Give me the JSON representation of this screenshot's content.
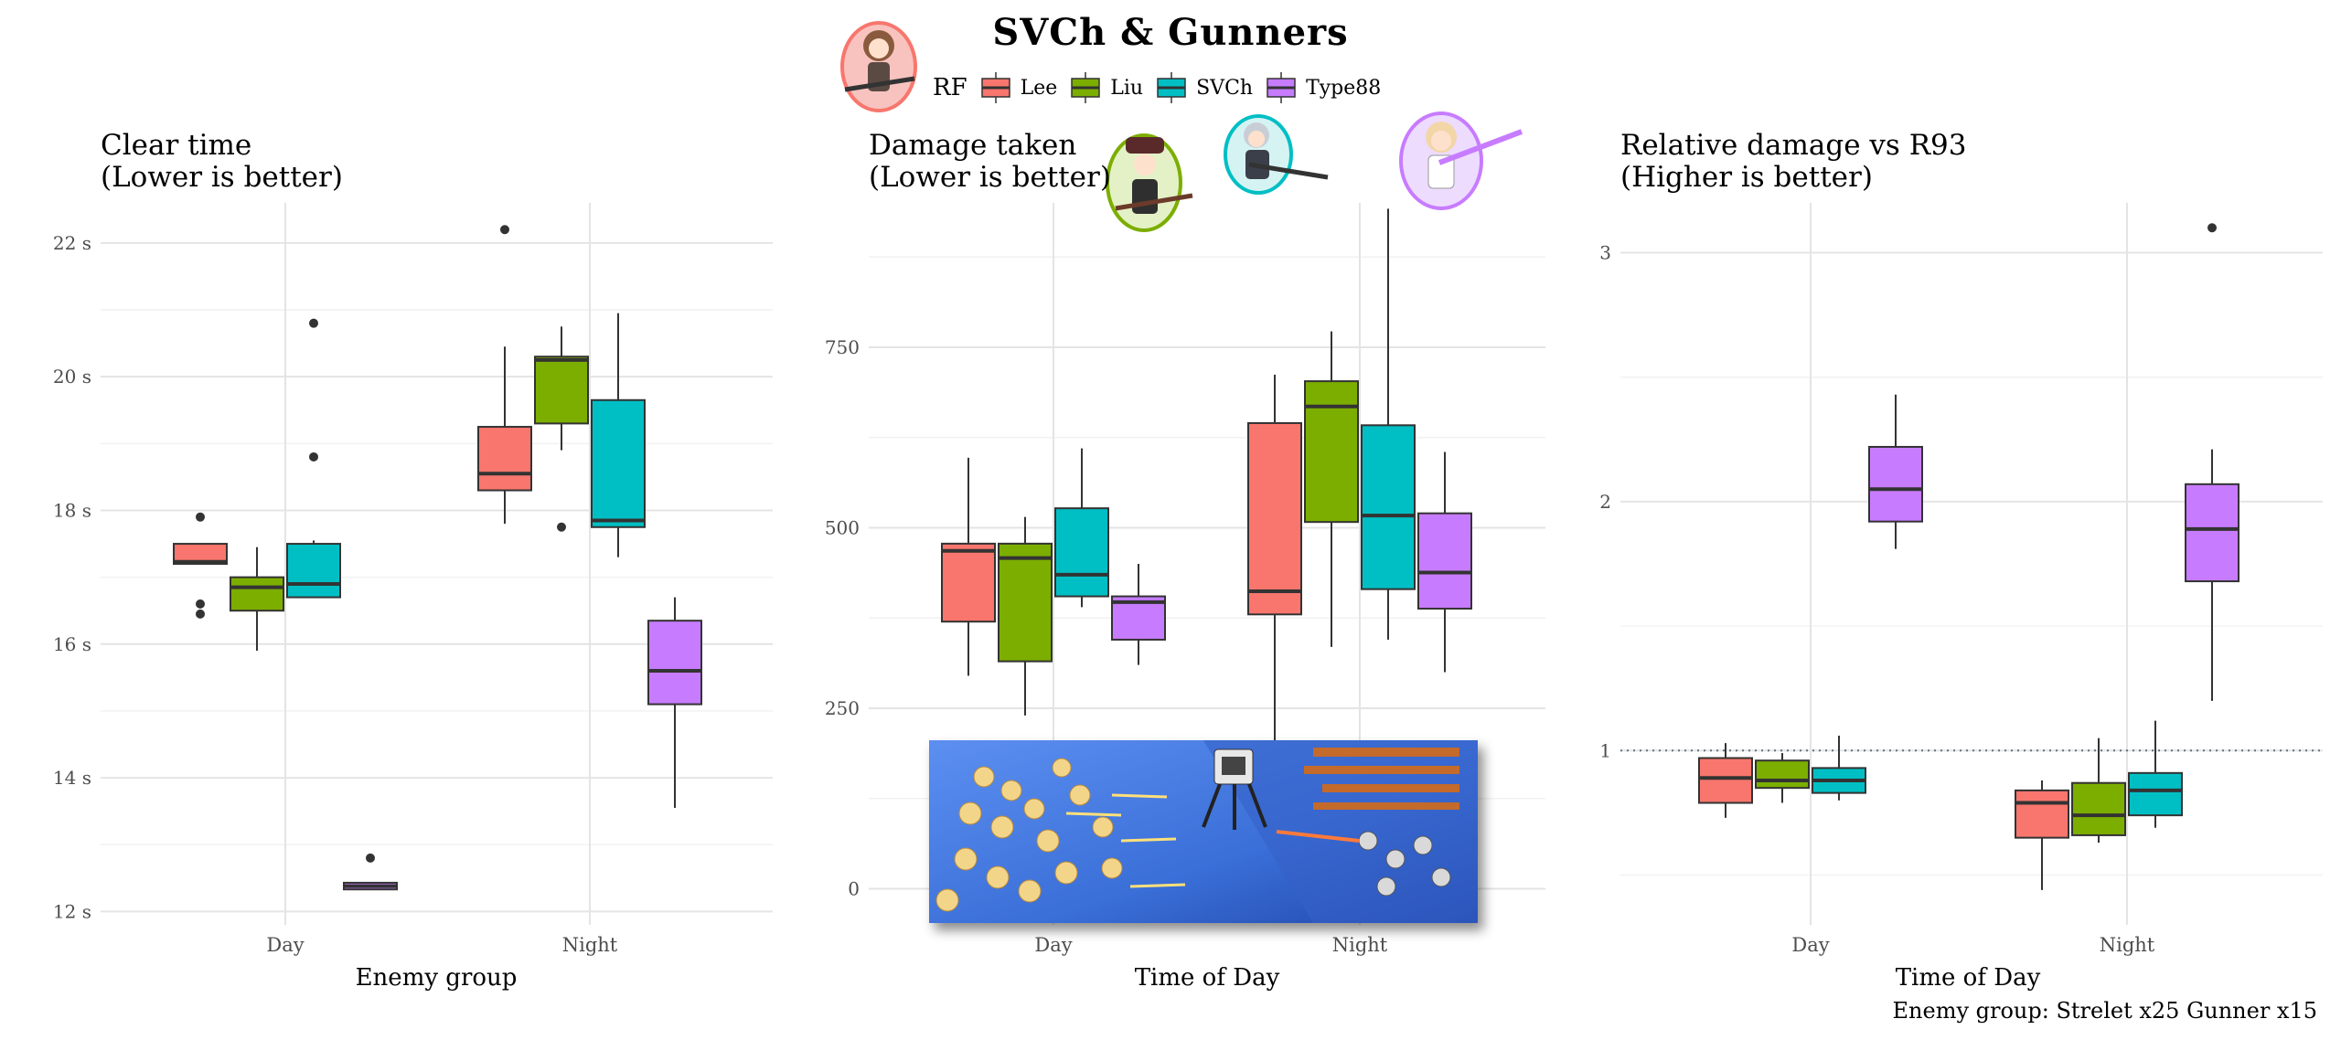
{
  "title": "SVCh & Gunners",
  "legend": {
    "title": "RF",
    "entries": [
      {
        "name": "Lee",
        "color": "#F8766D"
      },
      {
        "name": "Liu",
        "color": "#7CAE00"
      },
      {
        "name": "SVCh",
        "color": "#00BFC4"
      },
      {
        "name": "Type88",
        "color": "#C77CFF"
      }
    ]
  },
  "caption": "Enemy group: Strelet x25 Gunner x15",
  "chart_data": [
    {
      "type": "boxplot",
      "title": "Clear time\n(Lower is better)",
      "xlabel": "Enemy group",
      "ylabel": "",
      "categories": [
        "Day",
        "Night"
      ],
      "ylim": [
        11.8,
        22.6
      ],
      "yticks": [
        12,
        14,
        16,
        18,
        20,
        22
      ],
      "ytick_labels": [
        "12 s",
        "14 s",
        "16 s",
        "18 s",
        "20 s",
        "22 s"
      ],
      "series": [
        {
          "name": "Lee",
          "boxes": [
            {
              "q1": 17.2,
              "median": 17.23,
              "q3": 17.5,
              "lo": 17.2,
              "hi": 17.5,
              "outliers": [
                17.9,
                16.6,
                16.45
              ]
            },
            {
              "q1": 18.3,
              "median": 18.55,
              "q3": 19.25,
              "lo": 17.8,
              "hi": 20.45,
              "outliers": [
                22.2
              ]
            }
          ]
        },
        {
          "name": "Liu",
          "boxes": [
            {
              "q1": 16.5,
              "median": 16.85,
              "q3": 17.0,
              "lo": 15.9,
              "hi": 17.45,
              "outliers": []
            },
            {
              "q1": 19.3,
              "median": 20.25,
              "q3": 20.3,
              "lo": 18.9,
              "hi": 20.75,
              "outliers": [
                17.75
              ]
            }
          ]
        },
        {
          "name": "SVCh",
          "boxes": [
            {
              "q1": 16.7,
              "median": 16.9,
              "q3": 17.5,
              "lo": 16.7,
              "hi": 17.55,
              "outliers": [
                20.8,
                18.8
              ]
            },
            {
              "q1": 17.75,
              "median": 17.85,
              "q3": 19.65,
              "lo": 17.3,
              "hi": 20.95,
              "outliers": []
            }
          ]
        },
        {
          "name": "Type88",
          "boxes": [
            {
              "q1": 12.33,
              "median": 12.38,
              "q3": 12.43,
              "lo": 12.33,
              "hi": 12.43,
              "outliers": [
                12.8
              ]
            },
            {
              "q1": 15.1,
              "median": 15.6,
              "q3": 16.35,
              "lo": 13.55,
              "hi": 16.7,
              "outliers": []
            }
          ]
        }
      ]
    },
    {
      "type": "boxplot",
      "title": "Damage taken\n(Lower is better)",
      "xlabel": "Time of Day",
      "ylabel": "",
      "categories": [
        "Day",
        "Night"
      ],
      "ylim": [
        -50,
        950
      ],
      "yticks": [
        0,
        250,
        500,
        750
      ],
      "ytick_labels": [
        "0",
        "250",
        "500",
        "750"
      ],
      "series": [
        {
          "name": "Lee",
          "boxes": [
            {
              "q1": 370,
              "median": 468,
              "q3": 478,
              "lo": 295,
              "hi": 597,
              "outliers": []
            },
            {
              "q1": 380,
              "median": 412,
              "q3": 645,
              "lo": 180,
              "hi": 712,
              "outliers": []
            }
          ]
        },
        {
          "name": "Liu",
          "boxes": [
            {
              "q1": 315,
              "median": 458,
              "q3": 478,
              "lo": 240,
              "hi": 515,
              "outliers": []
            },
            {
              "q1": 508,
              "median": 668,
              "q3": 703,
              "lo": 335,
              "hi": 772,
              "outliers": []
            }
          ]
        },
        {
          "name": "SVCh",
          "boxes": [
            {
              "q1": 405,
              "median": 435,
              "q3": 527,
              "lo": 390,
              "hi": 610,
              "outliers": []
            },
            {
              "q1": 415,
              "median": 517,
              "q3": 642,
              "lo": 345,
              "hi": 942,
              "outliers": []
            }
          ]
        },
        {
          "name": "Type88",
          "boxes": [
            {
              "q1": 345,
              "median": 397,
              "q3": 405,
              "lo": 310,
              "hi": 450,
              "outliers": []
            },
            {
              "q1": 388,
              "median": 438,
              "q3": 520,
              "lo": 300,
              "hi": 605,
              "outliers": []
            }
          ]
        }
      ]
    },
    {
      "type": "boxplot",
      "title": "Relative damage vs R93\n(Higher is better)",
      "xlabel": "Time of Day",
      "ylabel": "",
      "categories": [
        "Day",
        "Night"
      ],
      "ylim": [
        0.3,
        3.2
      ],
      "yticks": [
        1,
        2,
        3
      ],
      "ytick_labels": [
        "1",
        "2",
        "3"
      ],
      "reference_line": 1,
      "series": [
        {
          "name": "Lee",
          "boxes": [
            {
              "q1": 0.79,
              "median": 0.89,
              "q3": 0.97,
              "lo": 0.73,
              "hi": 1.03,
              "outliers": []
            },
            {
              "q1": 0.65,
              "median": 0.79,
              "q3": 0.84,
              "lo": 0.44,
              "hi": 0.88,
              "outliers": []
            }
          ]
        },
        {
          "name": "Liu",
          "boxes": [
            {
              "q1": 0.85,
              "median": 0.88,
              "q3": 0.96,
              "lo": 0.79,
              "hi": 0.99,
              "outliers": []
            },
            {
              "q1": 0.66,
              "median": 0.74,
              "q3": 0.87,
              "lo": 0.63,
              "hi": 1.05,
              "outliers": []
            }
          ]
        },
        {
          "name": "SVCh",
          "boxes": [
            {
              "q1": 0.83,
              "median": 0.88,
              "q3": 0.93,
              "lo": 0.8,
              "hi": 1.06,
              "outliers": []
            },
            {
              "q1": 0.74,
              "median": 0.84,
              "q3": 0.91,
              "lo": 0.69,
              "hi": 1.12,
              "outliers": []
            }
          ]
        },
        {
          "name": "Type88",
          "boxes": [
            {
              "q1": 1.92,
              "median": 2.05,
              "q3": 2.22,
              "lo": 1.81,
              "hi": 2.43,
              "outliers": []
            },
            {
              "q1": 1.68,
              "median": 1.89,
              "q3": 2.07,
              "lo": 1.2,
              "hi": 2.21,
              "outliers": [
                3.1
              ]
            }
          ]
        }
      ]
    }
  ]
}
